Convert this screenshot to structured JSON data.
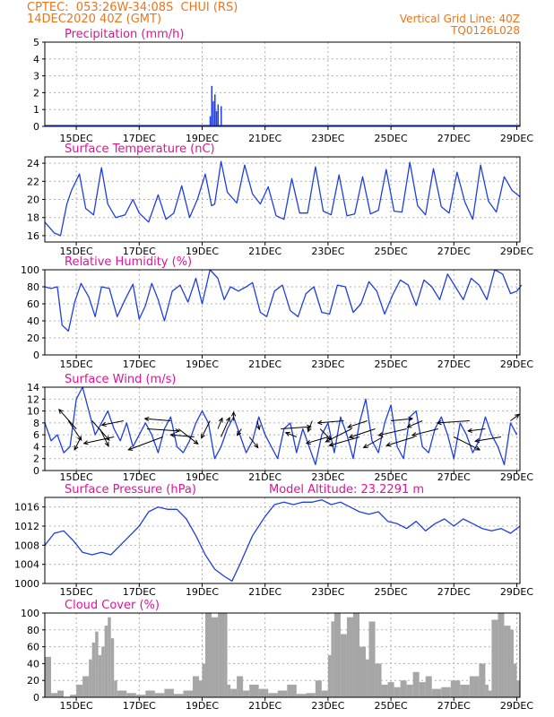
{
  "header": {
    "station": "CPTEC:  053:26W-34:08S  CHUI (RS)",
    "run": "14DEC2020 40Z (GMT)",
    "grid_note": "Vertical Grid Line: 40Z",
    "model": "TQ0126L028"
  },
  "colors": {
    "header": "#e8761e",
    "title": "#e0129a",
    "series": "#1f3fe0",
    "cloud": "#a6a6a6",
    "wind": "#000000",
    "grid": "#b0b0b0"
  },
  "date_ticks": [
    "15DEC",
    "17DEC",
    "19DEC",
    "21DEC",
    "23DEC",
    "25DEC",
    "27DEC",
    "29DEC"
  ],
  "chart_data": [
    {
      "type": "bar",
      "title": "Precipitation (mm/h)",
      "ylim": [
        0,
        5
      ],
      "yticks": [
        "0",
        "1",
        "2",
        "3",
        "4",
        "5"
      ],
      "x": [
        19.25,
        19.3,
        19.35,
        19.4,
        19.45,
        19.5,
        19.6
      ],
      "values": [
        0.6,
        2.4,
        1.5,
        1.9,
        0.9,
        1.3,
        1.2
      ]
    },
    {
      "type": "line",
      "title": "Surface Temperature (nC)",
      "ylim": [
        15.3,
        24.7
      ],
      "yticks": [
        "16",
        "18",
        "20",
        "22",
        "24"
      ],
      "x": [
        14.0,
        14.3,
        14.5,
        14.7,
        14.85,
        15.1,
        15.3,
        15.55,
        15.8,
        16.0,
        16.25,
        16.55,
        16.8,
        17.0,
        17.3,
        17.6,
        17.85,
        18.1,
        18.35,
        18.6,
        18.85,
        19.1,
        19.3,
        19.4,
        19.6,
        19.8,
        20.1,
        20.35,
        20.6,
        20.85,
        21.1,
        21.35,
        21.6,
        21.85,
        22.1,
        22.35,
        22.6,
        22.85,
        23.1,
        23.35,
        23.6,
        23.85,
        24.1,
        24.35,
        24.6,
        24.85,
        25.1,
        25.35,
        25.6,
        25.85,
        26.1,
        26.35,
        26.6,
        26.85,
        27.1,
        27.35,
        27.6,
        27.85,
        28.1,
        28.35,
        28.6,
        28.85,
        29.1
      ],
      "values": [
        17.5,
        16.3,
        16.0,
        19.5,
        21.0,
        22.8,
        19.0,
        18.3,
        23.5,
        19.5,
        18.0,
        18.3,
        20.0,
        18.5,
        17.5,
        20.5,
        17.8,
        18.5,
        21.5,
        18.0,
        20.0,
        22.8,
        19.3,
        19.5,
        24.2,
        20.8,
        19.6,
        23.8,
        20.6,
        19.5,
        21.4,
        18.2,
        17.8,
        22.3,
        18.5,
        18.5,
        23.6,
        18.7,
        18.3,
        22.7,
        18.2,
        18.4,
        22.5,
        18.4,
        18.8,
        23.3,
        18.7,
        18.6,
        24.1,
        19.3,
        18.3,
        23.4,
        19.2,
        18.5,
        23.0,
        19.7,
        17.8,
        23.8,
        19.8,
        18.6,
        22.5,
        21.0,
        20.3
      ]
    },
    {
      "type": "line",
      "title": "Relative Humidity (%)",
      "ylim": [
        0,
        100
      ],
      "yticks": [
        "0",
        "20",
        "40",
        "60",
        "80",
        "100"
      ],
      "x": [
        14.0,
        14.2,
        14.4,
        14.55,
        14.75,
        14.95,
        15.15,
        15.4,
        15.6,
        15.8,
        16.05,
        16.3,
        16.55,
        16.8,
        17.0,
        17.2,
        17.4,
        17.6,
        17.8,
        18.05,
        18.3,
        18.55,
        18.8,
        19.0,
        19.25,
        19.5,
        19.7,
        19.9,
        20.15,
        20.4,
        20.6,
        20.85,
        21.05,
        21.3,
        21.55,
        21.8,
        22.05,
        22.3,
        22.55,
        22.8,
        23.05,
        23.3,
        23.55,
        23.8,
        24.05,
        24.3,
        24.55,
        24.8,
        25.05,
        25.3,
        25.55,
        25.8,
        26.05,
        26.3,
        26.55,
        26.8,
        27.05,
        27.3,
        27.55,
        27.8,
        28.05,
        28.3,
        28.55,
        28.8,
        29.0,
        29.15
      ],
      "values": [
        80,
        78,
        80,
        35,
        28,
        62,
        84,
        68,
        45,
        80,
        78,
        45,
        65,
        83,
        42,
        58,
        84,
        65,
        40,
        75,
        82,
        62,
        90,
        60,
        100,
        90,
        65,
        80,
        75,
        80,
        85,
        50,
        45,
        75,
        82,
        52,
        45,
        72,
        80,
        50,
        48,
        82,
        80,
        50,
        60,
        86,
        75,
        48,
        70,
        88,
        82,
        58,
        88,
        80,
        65,
        95,
        80,
        65,
        90,
        82,
        65,
        100,
        95,
        72,
        75,
        82
      ]
    },
    {
      "type": "line",
      "title": "Surface Wind (m/s)",
      "ylim": [
        0,
        14
      ],
      "yticks": [
        "0",
        "2",
        "4",
        "6",
        "8",
        "10",
        "12",
        "14"
      ],
      "x": [
        14.0,
        14.2,
        14.4,
        14.6,
        14.8,
        15.0,
        15.2,
        15.4,
        15.6,
        15.8,
        16.0,
        16.2,
        16.4,
        16.6,
        16.8,
        17.0,
        17.2,
        17.4,
        17.6,
        17.8,
        18.0,
        18.2,
        18.4,
        18.6,
        18.8,
        19.0,
        19.2,
        19.4,
        19.6,
        19.8,
        20.0,
        20.2,
        20.4,
        20.6,
        20.8,
        21.0,
        21.2,
        21.4,
        21.6,
        21.8,
        22.0,
        22.2,
        22.4,
        22.6,
        22.8,
        23.0,
        23.2,
        23.4,
        23.6,
        23.8,
        24.0,
        24.2,
        24.4,
        24.6,
        24.8,
        25.0,
        25.2,
        25.4,
        25.6,
        25.8,
        26.0,
        26.2,
        26.4,
        26.6,
        26.8,
        27.0,
        27.2,
        27.4,
        27.6,
        27.8,
        28.0,
        28.2,
        28.4,
        28.6,
        28.8,
        29.0
      ],
      "values": [
        8,
        5,
        6,
        3,
        4,
        12,
        14,
        10,
        6,
        8,
        10,
        7,
        5,
        8,
        4,
        6,
        8,
        6,
        3,
        7,
        9,
        4,
        3,
        5,
        8,
        10,
        8,
        2,
        4,
        7,
        9,
        6,
        3,
        5,
        9,
        6,
        4,
        2,
        7,
        8,
        3,
        7,
        4,
        1,
        6,
        8,
        3,
        9,
        6,
        2,
        8,
        12,
        5,
        3,
        8,
        11,
        4,
        2,
        9,
        10,
        4,
        3,
        7,
        9,
        6,
        2,
        8,
        6,
        3,
        5,
        9,
        6,
        4,
        1,
        8,
        6
      ]
    },
    {
      "type": "line",
      "title": "Surface Pressure (hPa)",
      "annotation": "Model Altitude: 23.2291 m",
      "ylim": [
        1000,
        1018
      ],
      "yticks": [
        "1000",
        "1004",
        "1008",
        "1012",
        "1016"
      ],
      "x": [
        14.0,
        14.3,
        14.6,
        14.9,
        15.2,
        15.5,
        15.8,
        16.1,
        16.4,
        16.7,
        17.0,
        17.3,
        17.6,
        17.9,
        18.2,
        18.5,
        18.8,
        19.1,
        19.4,
        19.7,
        19.95,
        20.2,
        20.4,
        20.6,
        20.8,
        21.0,
        21.3,
        21.6,
        21.9,
        22.2,
        22.5,
        22.8,
        23.1,
        23.4,
        23.7,
        24.0,
        24.3,
        24.6,
        24.9,
        25.2,
        25.5,
        25.8,
        26.1,
        26.4,
        26.7,
        27.0,
        27.3,
        27.6,
        27.9,
        28.2,
        28.5,
        28.8,
        29.1
      ],
      "values": [
        1008,
        1010.5,
        1011,
        1009,
        1006.5,
        1006,
        1006.5,
        1006,
        1008,
        1010,
        1012,
        1015,
        1016,
        1015.5,
        1015.5,
        1013.5,
        1010,
        1006,
        1003,
        1001.5,
        1000.5,
        1004,
        1007,
        1010,
        1012,
        1014,
        1016.5,
        1017,
        1016.5,
        1017,
        1017,
        1017.5,
        1016.5,
        1017,
        1016,
        1015,
        1014.5,
        1015,
        1013,
        1012.5,
        1011.5,
        1013,
        1011,
        1012.5,
        1013.5,
        1012,
        1013.5,
        1012.5,
        1011.5,
        1011,
        1011.5,
        1010.5,
        1012
      ]
    },
    {
      "type": "area",
      "title": "Cloud Cover (%)",
      "ylim": [
        0,
        100
      ],
      "yticks": [
        "0",
        "20",
        "40",
        "60",
        "80",
        "100"
      ],
      "x": [
        14.0,
        14.2,
        14.4,
        14.6,
        14.8,
        15.0,
        15.2,
        15.4,
        15.5,
        15.6,
        15.7,
        15.8,
        15.9,
        16.0,
        16.1,
        16.2,
        16.3,
        16.6,
        16.9,
        17.2,
        17.5,
        17.8,
        18.1,
        18.4,
        18.7,
        18.9,
        19.0,
        19.1,
        19.2,
        19.3,
        19.5,
        19.7,
        19.8,
        19.9,
        20.1,
        20.3,
        20.5,
        20.8,
        21.1,
        21.4,
        21.7,
        22.0,
        22.3,
        22.6,
        22.8,
        23.0,
        23.1,
        23.2,
        23.4,
        23.6,
        23.8,
        24.0,
        24.2,
        24.3,
        24.5,
        24.7,
        24.9,
        25.1,
        25.3,
        25.5,
        25.7,
        25.9,
        26.1,
        26.3,
        26.6,
        26.9,
        27.2,
        27.5,
        27.8,
        28.0,
        28.1,
        28.2,
        28.4,
        28.6,
        28.8,
        28.9,
        29.0
      ],
      "values": [
        48,
        5,
        8,
        0,
        3,
        15,
        25,
        45,
        65,
        78,
        50,
        60,
        85,
        95,
        70,
        20,
        8,
        5,
        3,
        8,
        5,
        10,
        4,
        8,
        25,
        20,
        40,
        100,
        100,
        95,
        100,
        100,
        15,
        10,
        25,
        8,
        15,
        10,
        5,
        8,
        15,
        4,
        5,
        20,
        8,
        50,
        90,
        100,
        75,
        95,
        100,
        60,
        45,
        90,
        40,
        15,
        18,
        12,
        20,
        15,
        30,
        18,
        25,
        10,
        12,
        20,
        15,
        25,
        40,
        15,
        8,
        92,
        100,
        85,
        80,
        40,
        20
      ]
    }
  ],
  "wind_barbs": {
    "x": [
      14.75,
      15.0,
      15.15,
      15.5,
      15.75,
      16.2,
      16.5,
      17.25,
      17.75,
      18.0,
      18.25,
      18.75,
      19.25,
      19.5,
      19.6,
      20.0,
      20.25,
      20.5,
      20.75,
      21.5,
      22.0,
      22.5,
      22.75,
      23.0,
      23.5,
      23.75,
      24.0,
      24.25,
      24.5,
      24.75,
      25.0,
      25.5,
      25.75,
      26.0,
      26.5,
      27.0,
      27.5,
      28.0,
      28.5,
      28.8
    ],
    "u": [
      0.6,
      -0.8,
      -0.3,
      0.8,
      0.4,
      -1.4,
      -1.0,
      1.5,
      -1.6,
      -1.2,
      0.9,
      -1.1,
      -0.4,
      0.2,
      0.4,
      0.0,
      -0.2,
      0.4,
      0.1,
      1.4,
      -0.5,
      -0.2,
      0.5,
      -1.0,
      -1.2,
      -1.2,
      -1.4,
      -0.9,
      -1.2,
      -0.9,
      1.0,
      -1.3,
      -1.3,
      -0.7,
      -1.2,
      1.2,
      -1.5,
      -0.8,
      -1.2,
      0.4
    ],
    "v": [
      -0.9,
      0.9,
      -0.6,
      -0.9,
      -0.8,
      -0.3,
      -0.2,
      -0.1,
      -0.6,
      0.1,
      -0.7,
      0.1,
      -0.8,
      0.5,
      0.9,
      0.4,
      -0.3,
      -0.5,
      -0.4,
      0.1,
      0.2,
      -0.5,
      -0.5,
      -0.3,
      -0.1,
      -0.6,
      -0.4,
      -0.3,
      -0.4,
      -0.5,
      0.1,
      -0.3,
      -0.4,
      -0.3,
      -0.3,
      -0.6,
      -0.1,
      -0.1,
      -0.2,
      0.3
    ]
  }
}
